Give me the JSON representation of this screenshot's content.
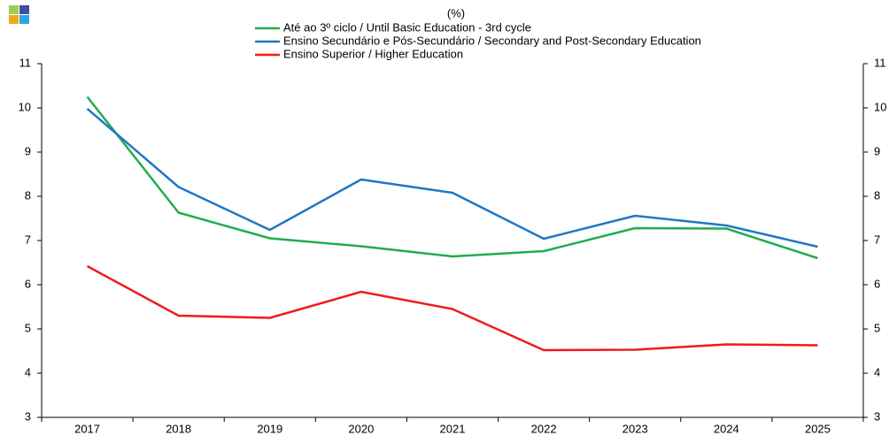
{
  "chart_data": {
    "type": "line",
    "title": "(%)",
    "categories": [
      "2017",
      "2018",
      "2019",
      "2020",
      "2021",
      "2022",
      "2023",
      "2024",
      "2025"
    ],
    "series": [
      {
        "name": "Até ao 3º ciclo / Until Basic Education - 3rd cycle",
        "color": "#1fae4b",
        "values": [
          10.25,
          7.63,
          7.05,
          6.87,
          6.64,
          6.76,
          7.28,
          7.27,
          6.6
        ]
      },
      {
        "name": "Ensino Secundário e Pós-Secundário / Secondary and Post-Secondary Education",
        "color": "#1f77c6",
        "values": [
          9.98,
          8.21,
          7.24,
          8.38,
          8.08,
          7.04,
          7.56,
          7.34,
          6.86
        ]
      },
      {
        "name": "Ensino Superior / Higher Education",
        "color": "#ee1c1c",
        "values": [
          6.42,
          5.3,
          5.25,
          5.84,
          5.45,
          4.52,
          4.53,
          4.65,
          4.63
        ]
      }
    ],
    "ylim": [
      3,
      11
    ],
    "yticks": [
      3,
      4,
      5,
      6,
      7,
      8,
      9,
      10,
      11
    ],
    "y2lim": [
      3,
      11
    ],
    "y2ticks": [
      3,
      4,
      5,
      6,
      7,
      8,
      9,
      10,
      11
    ]
  }
}
